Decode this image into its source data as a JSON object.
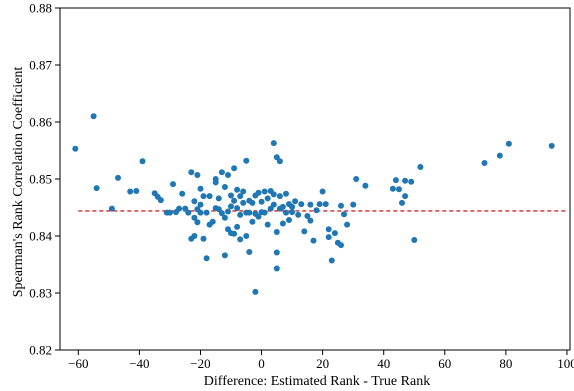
{
  "chart_data": {
    "type": "scatter",
    "xlabel": "Difference: Estimated Rank - True Rank",
    "ylabel": "Spearman's Rank Correlation Coefficient",
    "xlim": [
      -66,
      101
    ],
    "ylim": [
      0.82,
      0.88
    ],
    "xticks": [
      -60,
      -40,
      -20,
      0,
      20,
      40,
      60,
      80,
      100
    ],
    "yticks": [
      0.82,
      0.83,
      0.84,
      0.85,
      0.86,
      0.87,
      0.88
    ],
    "xtick_labels": [
      "−60",
      "−40",
      "−20",
      "0",
      "20",
      "40",
      "60",
      "80",
      "100"
    ],
    "ytick_labels": [
      "0.82",
      "0.83",
      "0.84",
      "0.85",
      "0.86",
      "0.87",
      "0.88"
    ],
    "grid": false,
    "point_color": "#1f77b4",
    "reference_line": {
      "y": 0.8444,
      "x_start": -60,
      "x_end": 100,
      "color": "#d62728",
      "style": "dashed"
    },
    "points": [
      [
        -61,
        0.8553
      ],
      [
        -55,
        0.861
      ],
      [
        -54,
        0.8484
      ],
      [
        -49,
        0.8448
      ],
      [
        -47,
        0.8502
      ],
      [
        -43,
        0.8478
      ],
      [
        -41,
        0.8479
      ],
      [
        -39,
        0.8531
      ],
      [
        -35,
        0.8475
      ],
      [
        -34,
        0.8469
      ],
      [
        -33,
        0.8463
      ],
      [
        -31,
        0.8441
      ],
      [
        -30,
        0.8441
      ],
      [
        -29,
        0.8491
      ],
      [
        -28,
        0.8442
      ],
      [
        -27,
        0.8448
      ],
      [
        -26,
        0.8474
      ],
      [
        -25,
        0.8448
      ],
      [
        -24,
        0.8441
      ],
      [
        -23,
        0.8395
      ],
      [
        -23,
        0.8512
      ],
      [
        -22,
        0.8432
      ],
      [
        -22,
        0.8461
      ],
      [
        -22,
        0.84
      ],
      [
        -21,
        0.8507
      ],
      [
        -21,
        0.8447
      ],
      [
        -21,
        0.8424
      ],
      [
        -20,
        0.8441
      ],
      [
        -20,
        0.8455
      ],
      [
        -20,
        0.8483
      ],
      [
        -19,
        0.847
      ],
      [
        -19,
        0.8395
      ],
      [
        -18,
        0.8361
      ],
      [
        -18,
        0.8441
      ],
      [
        -17,
        0.847
      ],
      [
        -17,
        0.842
      ],
      [
        -16,
        0.8425
      ],
      [
        -15,
        0.85
      ],
      [
        -15,
        0.8449
      ],
      [
        -15,
        0.8494
      ],
      [
        -14,
        0.8466
      ],
      [
        -14,
        0.8447
      ],
      [
        -13,
        0.844
      ],
      [
        -13,
        0.8512
      ],
      [
        -12,
        0.8432
      ],
      [
        -12,
        0.8486
      ],
      [
        -12,
        0.8366
      ],
      [
        -11,
        0.8412
      ],
      [
        -11,
        0.8443
      ],
      [
        -11,
        0.8507
      ],
      [
        -10,
        0.8405
      ],
      [
        -10,
        0.8471
      ],
      [
        -10,
        0.8452
      ],
      [
        -9,
        0.8519
      ],
      [
        -9,
        0.8404
      ],
      [
        -9,
        0.8462
      ],
      [
        -8,
        0.8416
      ],
      [
        -8,
        0.8481
      ],
      [
        -8,
        0.8449
      ],
      [
        -7,
        0.8394
      ],
      [
        -7,
        0.847
      ],
      [
        -7,
        0.8437
      ],
      [
        -6,
        0.8458
      ],
      [
        -6,
        0.8478
      ],
      [
        -5,
        0.8532
      ],
      [
        -5,
        0.8441
      ],
      [
        -5,
        0.84
      ],
      [
        -4,
        0.8462
      ],
      [
        -4,
        0.8441
      ],
      [
        -4,
        0.8372
      ],
      [
        -3,
        0.8458
      ],
      [
        -3,
        0.8425
      ],
      [
        -2,
        0.8471
      ],
      [
        -2,
        0.8439
      ],
      [
        -2,
        0.8302
      ],
      [
        -1,
        0.8476
      ],
      [
        -1,
        0.8434
      ],
      [
        0,
        0.8442
      ],
      [
        0,
        0.846
      ],
      [
        1,
        0.8478
      ],
      [
        1,
        0.8441
      ],
      [
        2,
        0.8466
      ],
      [
        2,
        0.842
      ],
      [
        3,
        0.8479
      ],
      [
        3,
        0.8448
      ],
      [
        4,
        0.8473
      ],
      [
        4,
        0.8563
      ],
      [
        4,
        0.8455
      ],
      [
        5,
        0.8538
      ],
      [
        5,
        0.8407
      ],
      [
        5,
        0.8371
      ],
      [
        5,
        0.8343
      ],
      [
        6,
        0.8531
      ],
      [
        6,
        0.847
      ],
      [
        6,
        0.8448
      ],
      [
        7,
        0.8422
      ],
      [
        7,
        0.8451
      ],
      [
        8,
        0.8441
      ],
      [
        8,
        0.8474
      ],
      [
        9,
        0.8428
      ],
      [
        9,
        0.8456
      ],
      [
        10,
        0.8451
      ],
      [
        10,
        0.8442
      ],
      [
        11,
        0.8461
      ],
      [
        12,
        0.8437
      ],
      [
        13,
        0.8456
      ],
      [
        14,
        0.8408
      ],
      [
        15,
        0.8435
      ],
      [
        16,
        0.8455
      ],
      [
        16,
        0.8427
      ],
      [
        17,
        0.8392
      ],
      [
        18,
        0.8445
      ],
      [
        19,
        0.8456
      ],
      [
        20,
        0.8478
      ],
      [
        21,
        0.8456
      ],
      [
        22,
        0.8412
      ],
      [
        22,
        0.8398
      ],
      [
        23,
        0.8357
      ],
      [
        24,
        0.8405
      ],
      [
        25,
        0.8388
      ],
      [
        26,
        0.8453
      ],
      [
        26,
        0.8384
      ],
      [
        27,
        0.8438
      ],
      [
        28,
        0.842
      ],
      [
        30,
        0.8455
      ],
      [
        31,
        0.85
      ],
      [
        34,
        0.8488
      ],
      [
        43,
        0.8483
      ],
      [
        44,
        0.8498
      ],
      [
        45,
        0.8482
      ],
      [
        46,
        0.8458
      ],
      [
        47,
        0.8497
      ],
      [
        47,
        0.847
      ],
      [
        49,
        0.8495
      ],
      [
        50,
        0.8393
      ],
      [
        52,
        0.8521
      ],
      [
        73,
        0.8528
      ],
      [
        78,
        0.8541
      ],
      [
        81,
        0.8562
      ],
      [
        95,
        0.8558
      ]
    ]
  }
}
